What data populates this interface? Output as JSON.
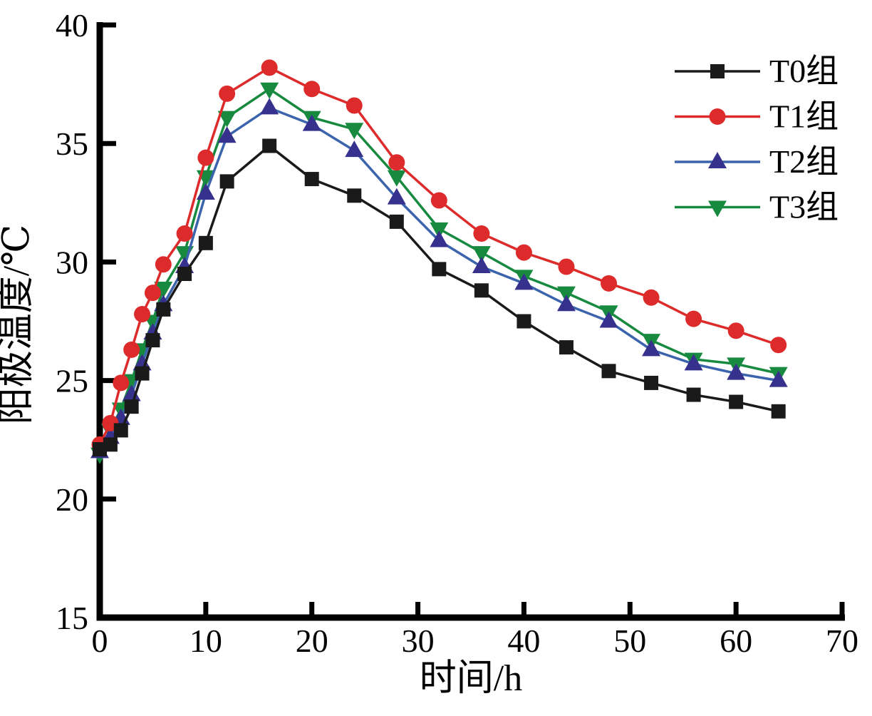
{
  "chart_data": {
    "type": "line",
    "title": "",
    "xlabel": "时间/h",
    "ylabel": "阳极温度/℃",
    "xlim": [
      0,
      70
    ],
    "ylim": [
      15,
      40
    ],
    "x_ticks": [
      0,
      10,
      20,
      30,
      40,
      50,
      60,
      70
    ],
    "y_ticks": [
      15,
      20,
      25,
      30,
      35,
      40
    ],
    "grid": false,
    "legend_position": "upper-right",
    "axis_color": "#000000",
    "background_color": "#ffffff",
    "x": [
      0,
      1,
      2,
      3,
      4,
      5,
      6,
      8,
      10,
      12,
      16,
      20,
      24,
      28,
      32,
      36,
      40,
      44,
      48,
      52,
      56,
      60,
      64
    ],
    "series": [
      {
        "name": "T0组",
        "marker": "square",
        "line_color": "#1a1a1a",
        "marker_color": "#1a1a1a",
        "values": [
          22.1,
          22.3,
          22.9,
          23.9,
          25.3,
          26.7,
          28.0,
          29.5,
          30.8,
          33.4,
          34.9,
          33.5,
          32.8,
          31.7,
          29.7,
          28.8,
          27.5,
          26.4,
          25.4,
          24.9,
          24.4,
          24.1,
          23.7
        ]
      },
      {
        "name": "T1组",
        "marker": "circle",
        "line_color": "#dd2b2b",
        "marker_color": "#dd2b2b",
        "values": [
          22.3,
          23.2,
          24.9,
          26.3,
          27.8,
          28.7,
          29.9,
          31.2,
          34.4,
          37.1,
          38.2,
          37.3,
          36.6,
          34.2,
          32.6,
          31.2,
          30.4,
          29.8,
          29.1,
          28.5,
          27.6,
          27.1,
          26.5
        ]
      },
      {
        "name": "T2组",
        "marker": "triangle-up",
        "line_color": "#3c64ad",
        "marker_color": "#35318c",
        "values": [
          22.0,
          22.6,
          23.4,
          24.4,
          25.7,
          27.0,
          28.2,
          29.8,
          32.9,
          35.3,
          36.5,
          35.8,
          34.7,
          32.7,
          30.9,
          29.8,
          29.1,
          28.2,
          27.5,
          26.3,
          25.7,
          25.3,
          25.0
        ]
      },
      {
        "name": "T3组",
        "marker": "triangle-down",
        "line_color": "#178a40",
        "marker_color": "#178a40",
        "values": [
          21.9,
          22.9,
          23.8,
          25.0,
          26.3,
          27.5,
          28.9,
          30.4,
          33.6,
          36.1,
          37.3,
          36.1,
          35.6,
          33.6,
          31.4,
          30.4,
          29.4,
          28.7,
          27.9,
          26.7,
          25.9,
          25.7,
          25.3
        ]
      }
    ]
  }
}
